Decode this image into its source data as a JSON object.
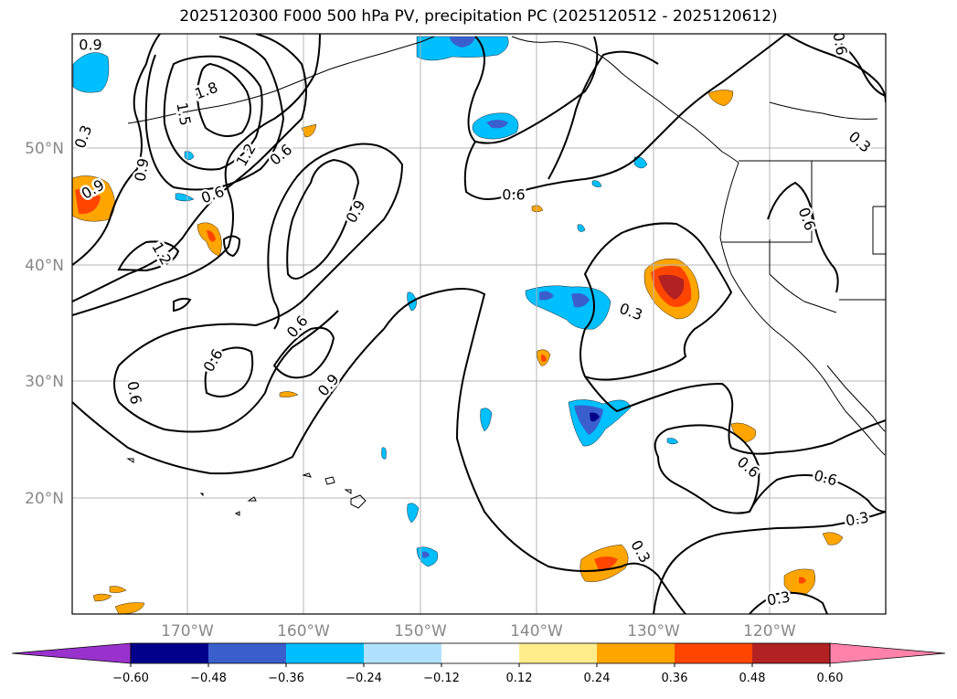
{
  "title": "2025120300 F000 500 hPa PV, precipitation PC (2025120512 - 2025120612)",
  "map": {
    "lon_labels": [
      "170°W",
      "160°W",
      "150°W",
      "140°W",
      "130°W",
      "120°W"
    ],
    "lat_labels": [
      "50°N",
      "40°N",
      "30°N",
      "20°N"
    ],
    "contour_labels": [
      "0.9",
      "0.3",
      "1.8",
      "1.5",
      "1.2",
      "0.6",
      "0.9",
      "0.6",
      "1.2",
      "0.9",
      "0.6",
      "0.9",
      "0.6",
      "0.6",
      "0.9",
      "0.6",
      "0.3",
      "0.6",
      "0.6",
      "0.3",
      "0.3",
      "0.3",
      "0.6",
      "0.3",
      "0.6"
    ]
  },
  "colorbar": {
    "ticks": [
      "−0.60",
      "−0.48",
      "−0.36",
      "−0.24",
      "−0.12",
      "0.12",
      "0.24",
      "0.36",
      "0.48",
      "0.60"
    ],
    "colors": [
      "#9932cc",
      "#00008b",
      "#3a5fcd",
      "#00bfff",
      "#b0e2ff",
      "#ffffff",
      "#ffec8b",
      "#ffa500",
      "#ff4500",
      "#b22222",
      "#ff82ab"
    ]
  }
}
